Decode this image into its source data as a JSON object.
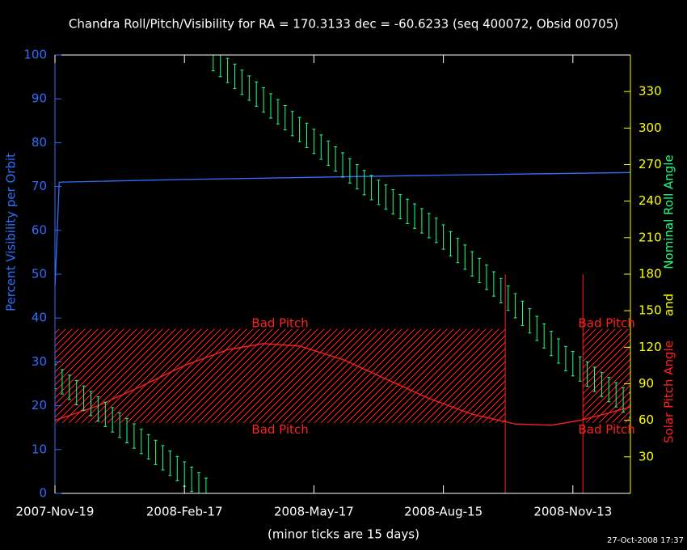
{
  "chart_data": {
    "type": "line",
    "title": "Chandra Roll/Pitch/Visibility for RA = 170.3133 dec = -60.6233 (seq 400072, Obsid 00705)",
    "xlabel": "(minor ticks are 15 days)",
    "ylabel": "Percent Visibility per Orbit",
    "y2label_parts": [
      {
        "text": "Solar Pitch Angle",
        "color": "#ff2020"
      },
      {
        "text": "and",
        "color": "#ffff00"
      },
      {
        "text": "Nominal Roll Angle",
        "color": "#20ff80"
      }
    ],
    "footnote": "27-Oct-2008 17:37",
    "xlim": [
      "2007-11-19",
      "2008-12-23"
    ],
    "xticks": [
      {
        "value": "2007-11-19",
        "label": "2007-Nov-19"
      },
      {
        "value": "2008-02-17",
        "label": "2008-Feb-17"
      },
      {
        "value": "2008-05-17",
        "label": "2008-May-17"
      },
      {
        "value": "2008-08-15",
        "label": "2008-Aug-15"
      },
      {
        "value": "2008-11-13",
        "label": "2008-Nov-13"
      }
    ],
    "ylim": [
      0,
      100
    ],
    "yticks": [
      0,
      10,
      20,
      30,
      40,
      50,
      60,
      70,
      80,
      90,
      100
    ],
    "y2lim": [
      0,
      360
    ],
    "y2ticks": [
      30,
      60,
      90,
      120,
      150,
      180,
      210,
      240,
      270,
      300,
      330
    ],
    "series": [
      {
        "name": "Visibility",
        "type": "line",
        "color": "#2f6fff",
        "x": [
          "2007-11-19",
          "2007-11-22",
          "2008-02-17",
          "2008-05-17",
          "2008-08-15",
          "2008-11-13",
          "2008-12-23"
        ],
        "values": [
          47,
          71,
          71.6,
          72.1,
          72.6,
          73,
          73.2
        ]
      },
      {
        "name": "Solar Pitch",
        "type": "line",
        "axis": "y2",
        "color": "#ff2020",
        "x": [
          "2007-11-19",
          "2007-12-19",
          "2008-01-18",
          "2008-02-17",
          "2008-03-18",
          "2008-04-12",
          "2008-05-07",
          "2008-06-06",
          "2008-07-06",
          "2008-08-05",
          "2008-09-04",
          "2008-10-04",
          "2008-10-29",
          "2008-11-18",
          "2008-12-08",
          "2008-12-23"
        ],
        "values": [
          60,
          72,
          88,
          105,
          118,
          123,
          121,
          110,
          94,
          78,
          65,
          57,
          56,
          60,
          66,
          71
        ]
      },
      {
        "name": "Nominal Roll",
        "type": "errorbar",
        "axis": "y2",
        "color": "#20ff80",
        "error": 10,
        "x": [
          "2007-11-19",
          "2007-11-24",
          "2007-11-29",
          "2007-12-04",
          "2007-12-09",
          "2007-12-14",
          "2007-12-19",
          "2007-12-24",
          "2007-12-29",
          "2008-01-03",
          "2008-01-08",
          "2008-01-13",
          "2008-01-18",
          "2008-01-23",
          "2008-01-28",
          "2008-02-02",
          "2008-02-07",
          "2008-02-12",
          "2008-02-17",
          "2008-02-22",
          "2008-02-27",
          "2008-03-03",
          "2008-03-08",
          "2008-03-13",
          "2008-03-18",
          "2008-03-23",
          "2008-03-28",
          "2008-04-02",
          "2008-04-07",
          "2008-04-12",
          "2008-04-17",
          "2008-04-22",
          "2008-04-27",
          "2008-05-02",
          "2008-05-07",
          "2008-05-12",
          "2008-05-17",
          "2008-05-22",
          "2008-05-27",
          "2008-06-01",
          "2008-06-06",
          "2008-06-11",
          "2008-06-16",
          "2008-06-21",
          "2008-06-26",
          "2008-07-01",
          "2008-07-06",
          "2008-07-11",
          "2008-07-16",
          "2008-07-21",
          "2008-07-26",
          "2008-07-31",
          "2008-08-05",
          "2008-08-10",
          "2008-08-15",
          "2008-08-20",
          "2008-08-25",
          "2008-08-30",
          "2008-09-04",
          "2008-09-09",
          "2008-09-14",
          "2008-09-19",
          "2008-09-24",
          "2008-09-29",
          "2008-10-04",
          "2008-10-09",
          "2008-10-14",
          "2008-10-19",
          "2008-10-24",
          "2008-10-29",
          "2008-11-03",
          "2008-11-08",
          "2008-11-13",
          "2008-11-18",
          "2008-11-23",
          "2008-11-28",
          "2008-12-03",
          "2008-12-08",
          "2008-12-13",
          "2008-12-18",
          "2008-12-23"
        ],
        "values": [
          96,
          91.6,
          87.1,
          82.7,
          78.2,
          73.8,
          69.3,
          64.9,
          60.4,
          56,
          51.5,
          47.1,
          42.6,
          38.2,
          33.7,
          29.3,
          24.8,
          20.4,
          15.9,
          11.5,
          7,
          2.6,
          357,
          352.2,
          347.3,
          342.5,
          337.6,
          332.8,
          327.9,
          323.1,
          318.2,
          313.4,
          308.5,
          303.7,
          298.8,
          294,
          289.1,
          284.3,
          279.4,
          274.6,
          269.7,
          264.9,
          260,
          255.2,
          251.1,
          247.2,
          243.3,
          239.4,
          235.5,
          231.6,
          227.7,
          223.8,
          219.9,
          216,
          210.5,
          205,
          199.5,
          194,
          188.5,
          183,
          177.5,
          172,
          166.5,
          160.3,
          154.1,
          147.9,
          141.7,
          135.5,
          129.3,
          123.1,
          116.9,
          110.7,
          106.5,
          102.2,
          98,
          93.7,
          89.5,
          85.2,
          81,
          76.7,
          72.5
        ]
      }
    ],
    "bad_pitch_regions": [
      {
        "x": [
          "2007-11-19",
          "2008-09-27"
        ],
        "y2": [
          58,
          135
        ],
        "label_top": "Bad Pitch",
        "label_bottom": "Bad Pitch",
        "color": "#ff2020"
      },
      {
        "x": [
          "2008-11-20",
          "2008-12-23"
        ],
        "y2": [
          58,
          135
        ],
        "label_top": "Bad Pitch",
        "label_bottom": "Bad Pitch",
        "color": "#ff2020"
      }
    ],
    "markers": [
      {
        "x": "2008-09-27",
        "y2": 180,
        "color": "#ff2020"
      },
      {
        "x": "2008-11-20",
        "y2": 180,
        "color": "#ff2020"
      }
    ]
  }
}
